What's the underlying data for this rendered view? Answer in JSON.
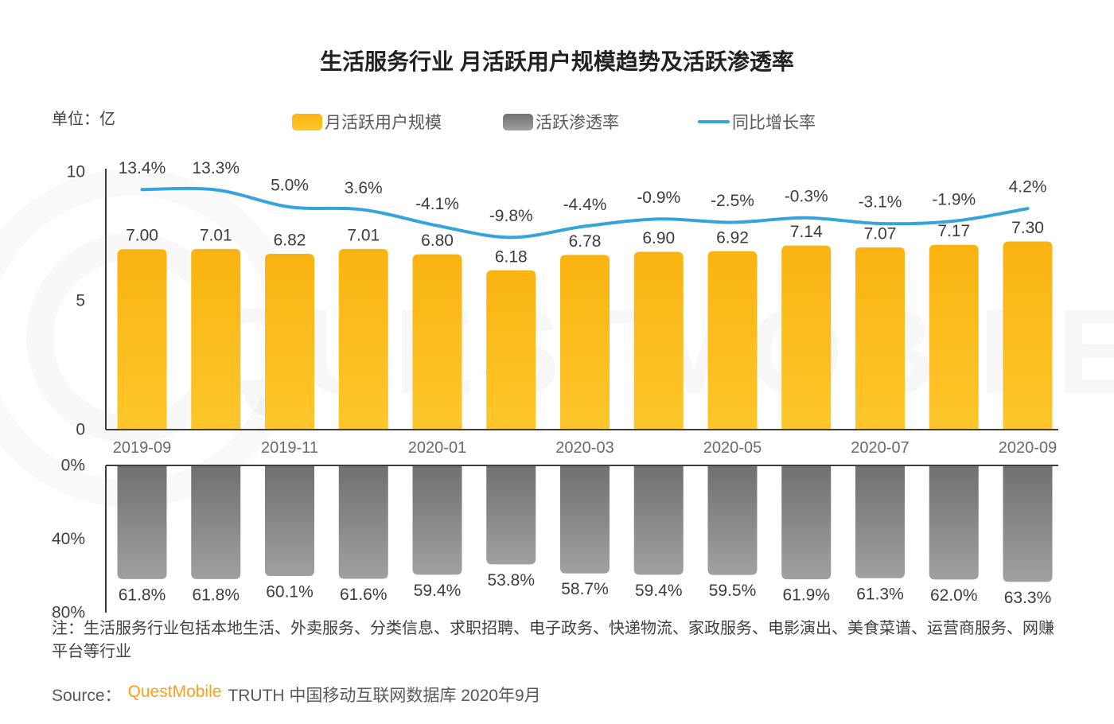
{
  "title": "生活服务行业 月活跃用户规模趋势及活跃渗透率",
  "unit_label": "单位：亿",
  "legend": [
    {
      "label": "月活跃用户规模",
      "type": "bar",
      "color": "#FBB616"
    },
    {
      "label": "活跃渗透率",
      "type": "bar",
      "color": "#8C8C8C"
    },
    {
      "label": "同比增长率",
      "type": "line",
      "color": "#35A3DC"
    }
  ],
  "colors": {
    "bar_yellow_top": "#FAB412",
    "bar_yellow_bottom": "#FCC62B",
    "bar_gray_top": "#707070",
    "bar_gray_bottom": "#A0A0A0",
    "line_blue": "#35A3DC",
    "axis_line": "#3C3C3C",
    "brand_orange": "#F9A11B"
  },
  "watermark": "QUESTMOBILE",
  "note": "注：生活服务行业包括本地生活、外卖服务、分类信息、求职招聘、电子政务、快递物流、家政服务、电影演出、美食菜谱、运营商服务、网赚平台等行业",
  "source": {
    "prefix": "Source：",
    "brand": "QuestMobile",
    "suffix": "TRUTH 中国移动互联网数据库 2020年9月"
  },
  "chart_data": {
    "type": "bar",
    "title": "生活服务行业 月活跃用户规模趋势及活跃渗透率",
    "unit": "亿",
    "x_ticks": [
      "2019-09",
      "2019-11",
      "2020-01",
      "2020-03",
      "2020-05",
      "2020-07",
      "2020-09"
    ],
    "x_tick_bar_indices": [
      0,
      2,
      4,
      6,
      8,
      10,
      12
    ],
    "series": [
      {
        "name": "月活跃用户规模",
        "type": "bar",
        "axis": "top-left",
        "unit": "亿",
        "values": [
          7.0,
          7.01,
          6.82,
          7.01,
          6.8,
          6.18,
          6.78,
          6.9,
          6.92,
          7.14,
          7.07,
          7.17,
          7.3
        ]
      },
      {
        "name": "同比增长率",
        "type": "line",
        "unit": "%",
        "values": [
          13.4,
          13.3,
          5.0,
          3.6,
          -4.1,
          -9.8,
          -4.4,
          -0.9,
          -2.5,
          -0.3,
          -3.1,
          -1.9,
          4.2
        ]
      },
      {
        "name": "活跃渗透率",
        "type": "bar",
        "axis": "bottom-inverted",
        "unit": "%",
        "values": [
          61.8,
          61.8,
          60.1,
          61.6,
          59.4,
          53.8,
          58.7,
          59.4,
          59.5,
          61.9,
          61.3,
          62.0,
          63.3
        ]
      }
    ],
    "top_axis": {
      "ticks": [
        10,
        5,
        0
      ],
      "range": [
        0,
        10
      ],
      "label": "单位：亿"
    },
    "bottom_axis": {
      "ticks": [
        0,
        40,
        80
      ],
      "range": [
        0,
        80
      ],
      "tick_suffix": "%",
      "inverted": true
    },
    "legend_position": "top",
    "grid": false
  }
}
